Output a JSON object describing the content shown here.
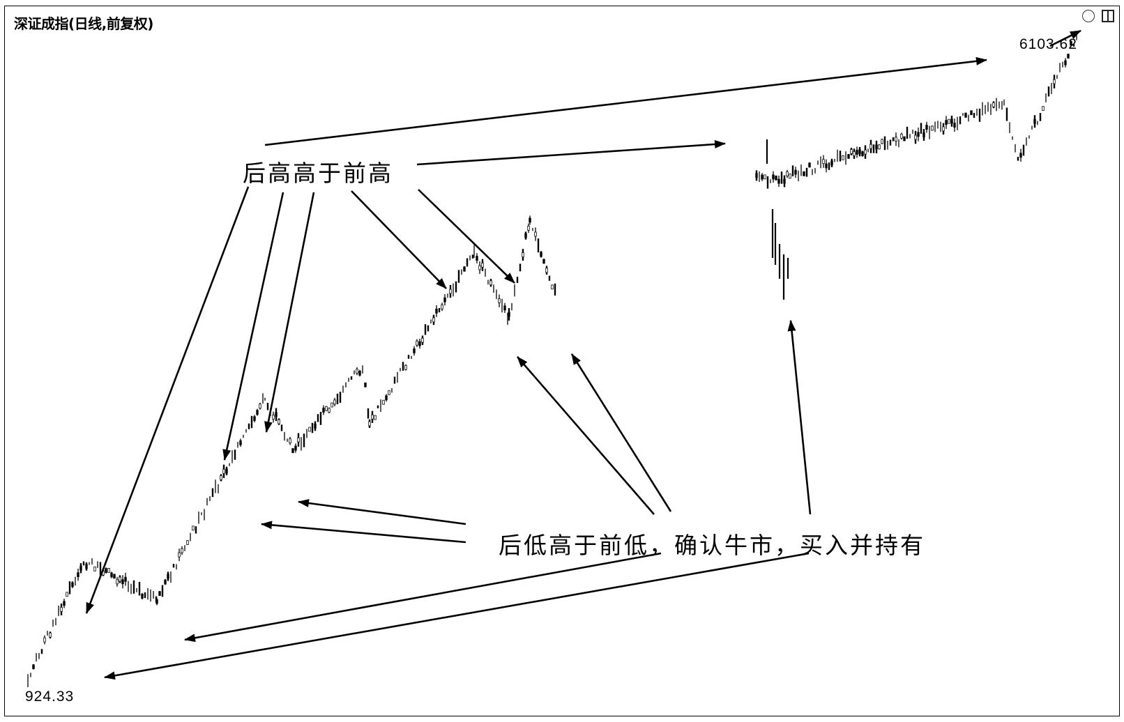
{
  "window": {
    "title": "深证成指(日线,前复权)",
    "icons": [
      "circle-icon",
      "window-square-icon"
    ]
  },
  "annotations": {
    "higher_highs": "后高高于前高",
    "higher_lows": "后低高于前低，确认牛市，买入并持有"
  },
  "chart_data": {
    "type": "candlestick",
    "title": "深证成指(日线,前复权)",
    "xlabel": "",
    "ylabel": "",
    "scale": "log",
    "grid": false,
    "ylim": [
      924.33,
      6103.62
    ],
    "point_labels": [
      {
        "text": "6103.62",
        "value": 6103.62,
        "role": "highest-high"
      },
      {
        "text": "924.33",
        "value": 924.33,
        "role": "lowest-low"
      }
    ],
    "key_points": [
      {
        "name": "start",
        "value": 924.33
      },
      {
        "name": "high-1",
        "value": 1300
      },
      {
        "name": "low-1",
        "value": 1160
      },
      {
        "name": "high-2",
        "value": 2100
      },
      {
        "name": "low-2",
        "value": 1800
      },
      {
        "name": "high-3",
        "value": 2300
      },
      {
        "name": "low-3",
        "value": 1950
      },
      {
        "name": "high-4",
        "value": 3200
      },
      {
        "name": "low-4",
        "value": 2650
      },
      {
        "name": "high-5",
        "value": 3550
      },
      {
        "name": "low-5",
        "value": 2800
      },
      {
        "name": "high-6",
        "value": 4050
      },
      {
        "name": "low-6",
        "value": 3950
      },
      {
        "name": "high-7",
        "value": 4950
      },
      {
        "name": "low-7",
        "value": 4200
      },
      {
        "name": "high-8",
        "value": 6103.62
      }
    ],
    "colors": {
      "line": "#000000",
      "background": "#ffffff"
    }
  }
}
